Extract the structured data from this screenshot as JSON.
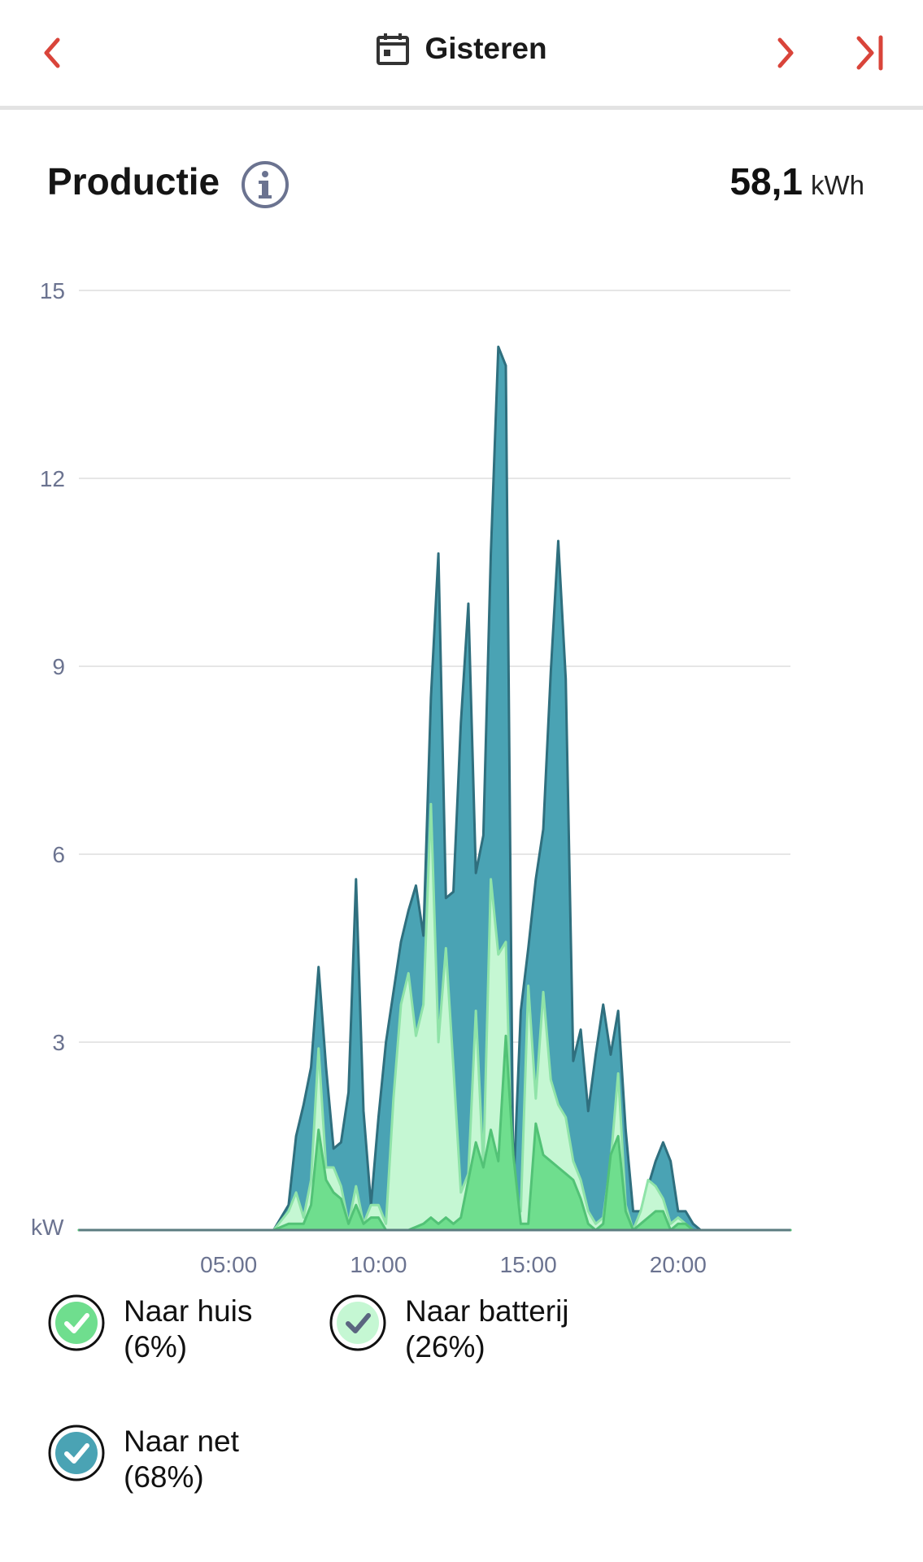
{
  "header": {
    "date_label": "Gisteren",
    "prev_icon": "chevron-left-icon",
    "next_icon": "chevron-right-icon",
    "last_icon": "skip-to-end-icon",
    "calendar_icon": "calendar-icon",
    "accent_color": "#d9443a"
  },
  "section": {
    "title": "Productie",
    "info_icon": "info-icon",
    "total_value": "58,1",
    "total_unit": "kWh"
  },
  "legend": [
    {
      "label": "Naar huis",
      "pct": "(6%)",
      "color": "#6fde8e"
    },
    {
      "label": "Naar batterij",
      "pct": "(26%)",
      "color": "#c5f7d3"
    },
    {
      "label": "Naar net",
      "pct": "(68%)",
      "color": "#4aa3b4"
    }
  ],
  "chart_data": {
    "type": "area",
    "ylabel": "kW",
    "ylim": [
      0,
      15
    ],
    "xlim": [
      0,
      23.75
    ],
    "yticks": [
      15,
      12,
      9,
      6,
      3
    ],
    "xticks": [
      {
        "value": 5,
        "label": "05:00"
      },
      {
        "value": 10,
        "label": "10:00"
      },
      {
        "value": 15,
        "label": "15:00"
      },
      {
        "value": 20,
        "label": "20:00"
      }
    ],
    "grid": true,
    "series": [
      {
        "name": "Naar net",
        "color": "#4aa3b4",
        "stroke": "#2f6f7e",
        "points": [
          [
            0,
            0
          ],
          [
            6.5,
            0
          ],
          [
            7,
            0.4
          ],
          [
            7.25,
            1.5
          ],
          [
            7.5,
            2.0
          ],
          [
            7.75,
            2.6
          ],
          [
            8,
            4.2
          ],
          [
            8.25,
            2.6
          ],
          [
            8.5,
            1.3
          ],
          [
            8.75,
            1.4
          ],
          [
            9,
            2.2
          ],
          [
            9.25,
            5.6
          ],
          [
            9.5,
            1.9
          ],
          [
            9.75,
            0.4
          ],
          [
            10,
            1.8
          ],
          [
            10.25,
            3.0
          ],
          [
            10.5,
            3.8
          ],
          [
            10.75,
            4.6
          ],
          [
            11,
            5.1
          ],
          [
            11.25,
            5.5
          ],
          [
            11.5,
            4.7
          ],
          [
            11.75,
            8.5
          ],
          [
            12,
            10.8
          ],
          [
            12.25,
            5.3
          ],
          [
            12.5,
            5.4
          ],
          [
            12.75,
            8.1
          ],
          [
            13,
            10.0
          ],
          [
            13.25,
            5.7
          ],
          [
            13.5,
            6.3
          ],
          [
            13.75,
            10.8
          ],
          [
            14,
            14.1
          ],
          [
            14.25,
            13.8
          ],
          [
            14.5,
            0.6
          ],
          [
            14.75,
            3.5
          ],
          [
            15,
            4.5
          ],
          [
            15.25,
            5.6
          ],
          [
            15.5,
            6.4
          ],
          [
            15.75,
            8.9
          ],
          [
            16,
            11.0
          ],
          [
            16.25,
            8.8
          ],
          [
            16.5,
            2.7
          ],
          [
            16.75,
            3.2
          ],
          [
            17,
            1.9
          ],
          [
            17.25,
            2.8
          ],
          [
            17.5,
            3.6
          ],
          [
            17.75,
            2.8
          ],
          [
            18,
            3.5
          ],
          [
            18.25,
            1.6
          ],
          [
            18.5,
            0.3
          ],
          [
            18.75,
            0.3
          ],
          [
            19,
            0.7
          ],
          [
            19.25,
            1.1
          ],
          [
            19.5,
            1.4
          ],
          [
            19.75,
            1.1
          ],
          [
            20,
            0.3
          ],
          [
            20.25,
            0.3
          ],
          [
            20.5,
            0.1
          ],
          [
            20.75,
            0
          ],
          [
            23.75,
            0
          ]
        ]
      },
      {
        "name": "Naar batterij",
        "color": "#c5f7d3",
        "stroke": "#8fe3a8",
        "points": [
          [
            0,
            0
          ],
          [
            6.5,
            0
          ],
          [
            7,
            0.3
          ],
          [
            7.25,
            0.6
          ],
          [
            7.5,
            0.2
          ],
          [
            7.75,
            0.8
          ],
          [
            8,
            2.9
          ],
          [
            8.25,
            1.0
          ],
          [
            8.5,
            1.0
          ],
          [
            8.75,
            0.7
          ],
          [
            9,
            0.1
          ],
          [
            9.25,
            0.7
          ],
          [
            9.5,
            0.1
          ],
          [
            9.75,
            0.4
          ],
          [
            10,
            0.4
          ],
          [
            10.25,
            0.1
          ],
          [
            10.5,
            2.1
          ],
          [
            10.75,
            3.6
          ],
          [
            11,
            4.1
          ],
          [
            11.25,
            3.1
          ],
          [
            11.5,
            3.6
          ],
          [
            11.75,
            6.8
          ],
          [
            12,
            3.0
          ],
          [
            12.25,
            4.5
          ],
          [
            12.5,
            2.6
          ],
          [
            12.75,
            0.6
          ],
          [
            13,
            0.9
          ],
          [
            13.25,
            3.5
          ],
          [
            13.5,
            1.0
          ],
          [
            13.75,
            5.6
          ],
          [
            14,
            4.4
          ],
          [
            14.25,
            4.6
          ],
          [
            14.5,
            0.2
          ],
          [
            14.75,
            0.3
          ],
          [
            15,
            3.9
          ],
          [
            15.25,
            2.1
          ],
          [
            15.5,
            3.8
          ],
          [
            15.75,
            2.4
          ],
          [
            16,
            2.0
          ],
          [
            16.25,
            1.8
          ],
          [
            16.5,
            1.1
          ],
          [
            16.75,
            0.8
          ],
          [
            17,
            0.3
          ],
          [
            17.25,
            0.1
          ],
          [
            17.5,
            0.2
          ],
          [
            17.75,
            1.1
          ],
          [
            18,
            2.5
          ],
          [
            18.25,
            0.4
          ],
          [
            18.5,
            0
          ],
          [
            18.75,
            0.3
          ],
          [
            19,
            0.8
          ],
          [
            19.25,
            0.7
          ],
          [
            19.5,
            0.5
          ],
          [
            19.75,
            0.1
          ],
          [
            20,
            0.2
          ],
          [
            20.25,
            0.1
          ],
          [
            20.5,
            0
          ],
          [
            23.75,
            0
          ]
        ]
      },
      {
        "name": "Naar huis",
        "color": "#6fde8e",
        "stroke": "#52c276",
        "points": [
          [
            0,
            0
          ],
          [
            6.5,
            0
          ],
          [
            7,
            0.1
          ],
          [
            7.25,
            0.1
          ],
          [
            7.5,
            0.1
          ],
          [
            7.75,
            0.4
          ],
          [
            8,
            1.6
          ],
          [
            8.25,
            0.8
          ],
          [
            8.5,
            0.6
          ],
          [
            8.75,
            0.5
          ],
          [
            9,
            0.1
          ],
          [
            9.25,
            0.4
          ],
          [
            9.5,
            0.1
          ],
          [
            9.75,
            0.2
          ],
          [
            10,
            0.2
          ],
          [
            10.25,
            0
          ],
          [
            11,
            0
          ],
          [
            11.5,
            0.1
          ],
          [
            11.75,
            0.2
          ],
          [
            12,
            0.1
          ],
          [
            12.25,
            0.2
          ],
          [
            12.5,
            0.1
          ],
          [
            12.75,
            0.2
          ],
          [
            13,
            0.8
          ],
          [
            13.25,
            1.4
          ],
          [
            13.5,
            1.0
          ],
          [
            13.75,
            1.6
          ],
          [
            14,
            1.1
          ],
          [
            14.25,
            3.1
          ],
          [
            14.5,
            1.2
          ],
          [
            14.75,
            0.1
          ],
          [
            15,
            0.1
          ],
          [
            15.25,
            1.7
          ],
          [
            15.5,
            1.2
          ],
          [
            15.75,
            1.1
          ],
          [
            16,
            1.0
          ],
          [
            16.25,
            0.9
          ],
          [
            16.5,
            0.8
          ],
          [
            16.75,
            0.5
          ],
          [
            17,
            0.1
          ],
          [
            17.25,
            0
          ],
          [
            17.5,
            0.1
          ],
          [
            17.75,
            1.2
          ],
          [
            18,
            1.5
          ],
          [
            18.25,
            0.3
          ],
          [
            18.5,
            0
          ],
          [
            18.75,
            0.1
          ],
          [
            19,
            0.2
          ],
          [
            19.25,
            0.3
          ],
          [
            19.5,
            0.3
          ],
          [
            19.75,
            0
          ],
          [
            20,
            0.1
          ],
          [
            20.25,
            0.1
          ],
          [
            20.5,
            0
          ],
          [
            23.75,
            0
          ]
        ]
      }
    ]
  }
}
